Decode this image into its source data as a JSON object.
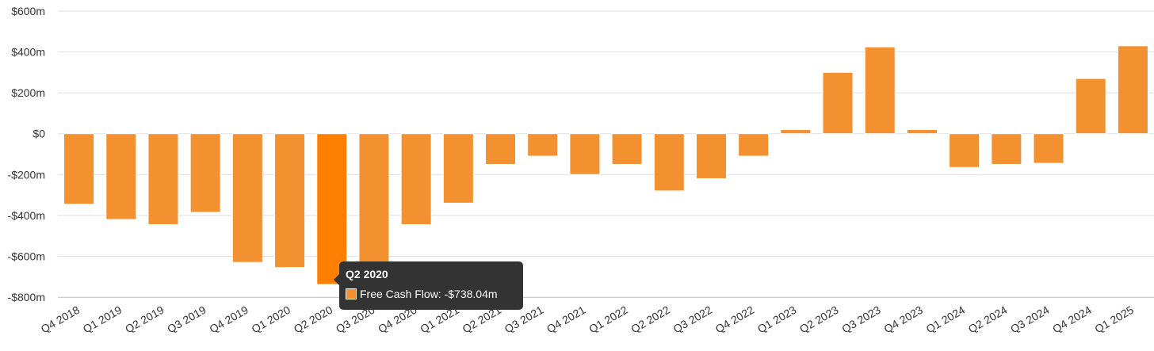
{
  "chart_data": {
    "type": "bar",
    "categories": [
      "Q4 2018",
      "Q1 2019",
      "Q2 2019",
      "Q3 2019",
      "Q4 2019",
      "Q1 2020",
      "Q2 2020",
      "Q3 2020",
      "Q4 2020",
      "Q1 2021",
      "Q2 2021",
      "Q3 2021",
      "Q4 2021",
      "Q1 2022",
      "Q2 2022",
      "Q3 2022",
      "Q4 2022",
      "Q1 2023",
      "Q2 2023",
      "Q3 2023",
      "Q4 2023",
      "Q1 2024",
      "Q2 2024",
      "Q3 2024",
      "Q4 2024",
      "Q1 2025"
    ],
    "series": [
      {
        "name": "Free Cash Flow",
        "values": [
          -345,
          -420,
          -445,
          -385,
          -630,
          -655,
          -738.04,
          -630,
          -445,
          -340,
          -150,
          -110,
          -200,
          -150,
          -280,
          -220,
          -110,
          20,
          300,
          425,
          20,
          -165,
          -150,
          -145,
          270,
          430
        ]
      }
    ],
    "ylim": [
      -800,
      600
    ],
    "yticks": [
      600,
      400,
      200,
      0,
      -200,
      -400,
      -600,
      -800
    ],
    "ytick_labels": [
      "$600m",
      "$400m",
      "$200m",
      "$0",
      "-$200m",
      "-$400m",
      "-$600m",
      "-$800m"
    ],
    "highlight_index": 6,
    "colors": {
      "bar": "#f39030",
      "bar_highlight": "#ff8000",
      "grid": "#e1e1e1"
    },
    "grid": true
  },
  "tooltip": {
    "title": "Q2 2020",
    "text": "Free Cash Flow: -$738.04m"
  }
}
